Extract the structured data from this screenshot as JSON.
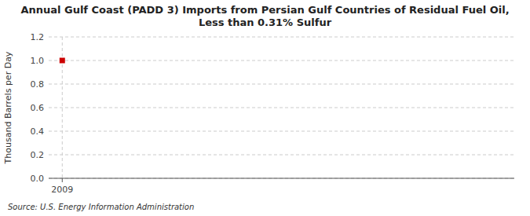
{
  "chart_data": {
    "type": "scatter",
    "title": "Annual Gulf Coast (PADD 3) Imports from Persian Gulf Countries of Residual Fuel Oil, Less than 0.31% Sulfur",
    "y_label": "Thousand Barrels per Day",
    "source": "Source: U.S. Energy Information Administration",
    "x": [
      2009
    ],
    "values": [
      1.0
    ],
    "color": "#cc0000",
    "marker": "square",
    "xlim": [
      2008.7,
      2019.0
    ],
    "ylim": [
      0.0,
      1.2
    ],
    "xticks": [
      2009
    ],
    "yticks": [
      {
        "value": 0.0,
        "label": "0.0"
      },
      0.2,
      0.4,
      0.6,
      0.8,
      {
        "value": 1.0,
        "label": "1.0"
      },
      1.2
    ],
    "grid": true
  }
}
